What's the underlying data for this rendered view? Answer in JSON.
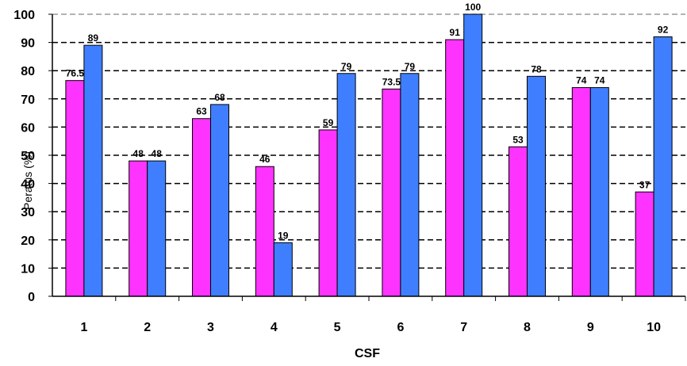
{
  "chart_data": {
    "type": "bar",
    "title": "",
    "xlabel": "CSF",
    "ylabel": "Peratus (%)",
    "ylim": [
      0,
      100
    ],
    "y_ticks": [
      "0",
      "10",
      "20",
      "30",
      "40",
      "50",
      "60",
      "70",
      "80",
      "90",
      "100"
    ],
    "grid": true,
    "legend": "none",
    "categories": [
      "1",
      "2",
      "3",
      "4",
      "5",
      "6",
      "7",
      "8",
      "9",
      "10"
    ],
    "series": [
      {
        "color": "#ff33ff",
        "values": [
          76.5,
          48,
          63,
          46,
          59,
          73.5,
          91,
          53,
          74,
          37
        ],
        "labels": [
          "76.5",
          "48",
          "63",
          "46",
          "59",
          "73.5",
          "91",
          "53",
          "74",
          "37"
        ]
      },
      {
        "color": "#3f7fff",
        "values": [
          89,
          48,
          68,
          19,
          79,
          79,
          100,
          78,
          74,
          92
        ],
        "labels": [
          "89",
          "48",
          "68",
          "19",
          "79",
          "79",
          "100",
          "78",
          "74",
          "92"
        ]
      }
    ]
  }
}
